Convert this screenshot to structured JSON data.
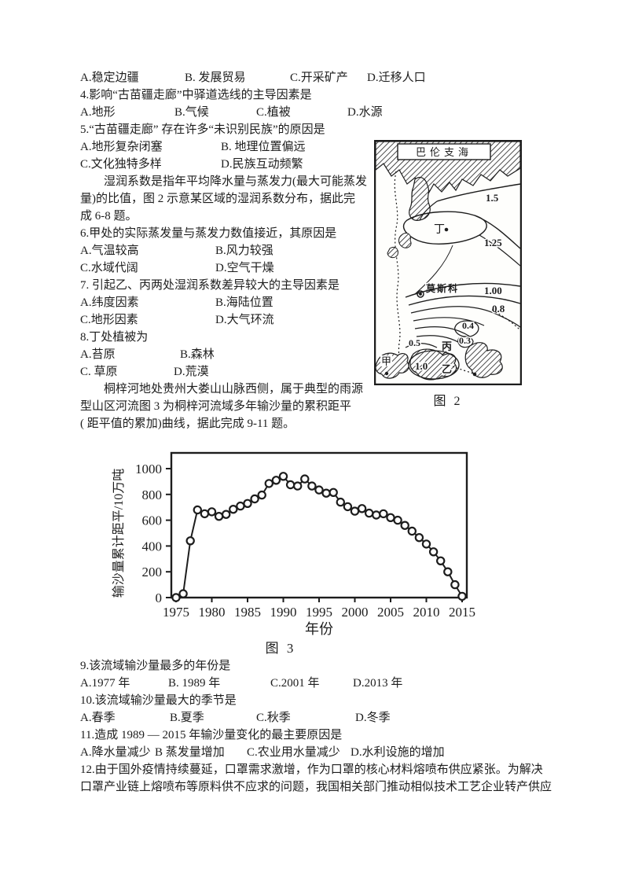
{
  "content": {
    "line1": {
      "a": "A.稳定边疆",
      "b": "B. 发展贸易",
      "c": "C.开采矿产",
      "d": "D.迁移人口"
    },
    "q4": {
      "title": "4.影响“古苗疆走廊”中驿道选线的主导因素是",
      "a": "A.地形",
      "b": "B.气候",
      "c": "C.植被",
      "d": "D.水源"
    },
    "q5": {
      "title": "5.“古苗疆走廊” 存在许多“未识别民族”的原因是",
      "a": "A.地形复杂闭塞",
      "b": "B. 地理位置偏远",
      "c": "C.文化独特多样",
      "d": "D.民族互动频繁"
    },
    "passage1": [
      "湿润系数是指年平均降水量与蒸发力(最大可能蒸发",
      "量)的比值，图 2 示意某区域的湿润系数分布，据此完",
      "成 6-8 题。"
    ],
    "q6": {
      "title": "6.甲处的实际蒸发量与蒸发力数值接近，其原因是",
      "a": "A.气温较高",
      "b": "B.风力较强",
      "c": "C.水域代阔",
      "d": "D.空气干燥"
    },
    "q7": {
      "title": "7. 引起乙、丙两处湿润系数差异较大的主导因素是",
      "a": "A.纬度因素",
      "b": "B.海陆位置",
      "c": "C.地形因素",
      "d": "D.大气环流"
    },
    "q8": {
      "title": "8.丁处植被为",
      "a": "A.苔原",
      "b": "B.森林",
      "c": "C. 草原",
      "d": "D.荒漠"
    },
    "passage2": [
      "桐梓河地处贵州大娄山山脉西侧，属于典型的雨源",
      "型山区河流图 3 为桐梓河流域多年输沙量的累积距平",
      "( 距平值的累加)曲线，据此完成 9-11 题。"
    ],
    "q9": {
      "title": "9.该流域输沙量最多的年份是",
      "a": "A.1977 年",
      "b": "B. 1989 年",
      "c": "C.2001 年",
      "d": "D.2013 年"
    },
    "q10": {
      "title": "10.该流域输沙量最大的季节是",
      "a": "A.春季",
      "b": "B.夏季",
      "c": "C.秋季",
      "d": "D.冬季"
    },
    "q11": {
      "title": "11.造成 1989 — 2015 年输沙量变化的最主要原因是",
      "a": "A.降水量减少",
      "b": "B 蒸发量增加",
      "c": "C.农业用水量减少",
      "d": "D.水利设施的增加"
    },
    "q12": [
      "12.由于国外疫情持续蔓延，口罩需求激增，作为口罩的核心材料熔喷布供应紧张。为解决",
      "口罩产业链上熔喷布等原料供不应求的问题，我国相关部门推动相似技术工艺企业转产供应"
    ]
  },
  "map": {
    "caption": "图 2",
    "sea": "巴伦支海",
    "city": "莫斯科",
    "point_jia": "甲",
    "point_yi": "乙",
    "point_bing": "丙",
    "point_ding": "丁",
    "iso_15": "1.5",
    "iso_125": "1.25",
    "iso_100": "1.00",
    "iso_08": "0.8",
    "iso_04": "0.4",
    "iso_03": "0.3",
    "iso_05": "0.5",
    "iso_10": "1.0"
  },
  "chart_data": {
    "type": "line",
    "caption": "图 3",
    "xlabel": "年份",
    "ylabel": "输沙量累计距平/10万吨",
    "x": [
      1975,
      1976,
      1977,
      1978,
      1979,
      1980,
      1981,
      1982,
      1983,
      1984,
      1985,
      1986,
      1987,
      1988,
      1989,
      1990,
      1991,
      1992,
      1993,
      1994,
      1995,
      1996,
      1997,
      1998,
      1999,
      2000,
      2001,
      2002,
      2003,
      2004,
      2005,
      2006,
      2007,
      2008,
      2009,
      2010,
      2011,
      2012,
      2013,
      2014,
      2015
    ],
    "values": [
      0,
      30,
      440,
      680,
      650,
      665,
      630,
      645,
      685,
      710,
      730,
      765,
      795,
      885,
      910,
      940,
      875,
      865,
      920,
      865,
      835,
      810,
      815,
      740,
      705,
      670,
      690,
      655,
      640,
      650,
      620,
      600,
      560,
      515,
      465,
      415,
      355,
      285,
      200,
      100,
      10
    ],
    "xticks": [
      1975,
      1980,
      1985,
      1990,
      1995,
      2000,
      2005,
      2010,
      2015
    ],
    "yticks": [
      0,
      200,
      400,
      600,
      800,
      1000
    ],
    "ylim": [
      0,
      1000
    ],
    "marker": "open-circle",
    "line_color": "#1d1d1d",
    "grid": false,
    "legend": false
  }
}
